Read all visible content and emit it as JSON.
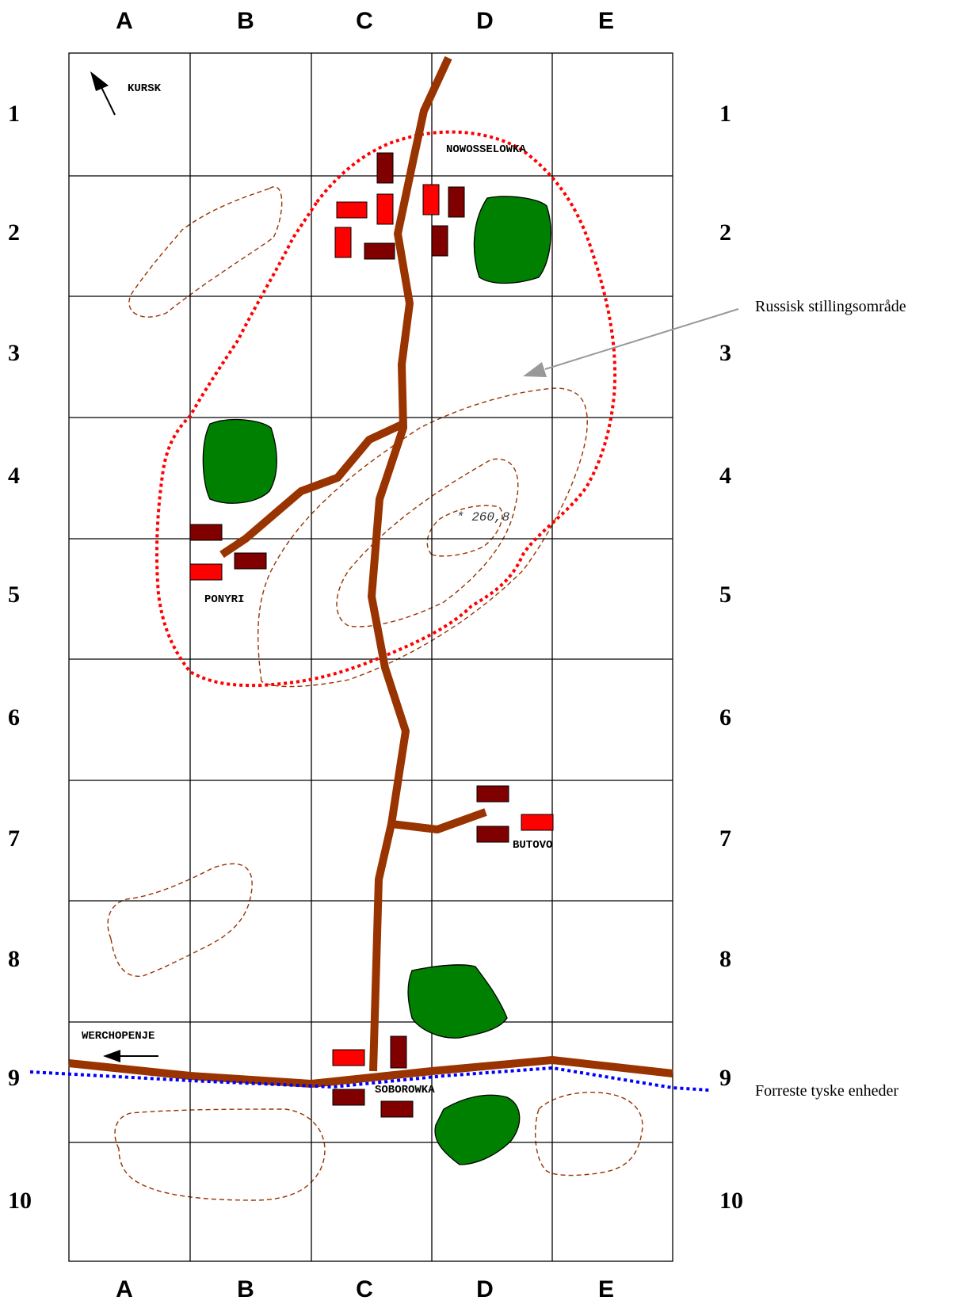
{
  "columns": [
    "A",
    "B",
    "C",
    "D",
    "E"
  ],
  "rows": [
    "1",
    "2",
    "3",
    "4",
    "5",
    "6",
    "7",
    "8",
    "9",
    "10"
  ],
  "places": {
    "kursk": "KURSK",
    "nowosselowka": "NOWOSSELOWKA",
    "ponyri": "PONYRI",
    "butovo": "BUTOVO",
    "werchopenje": "WERCHOPENJE",
    "soborowka": "SOBOROWKA"
  },
  "elevation": "* 260,8",
  "annotations": {
    "russian_area": "Russisk stillingsområde",
    "german_front": "Forreste tyske enheder"
  },
  "colors": {
    "road": "#993300",
    "forest": "#008000",
    "building_red": "#ff0000",
    "building_dark": "#800000",
    "russian_line": "#ff0000",
    "german_line": "#0000ff",
    "contour": "#993300",
    "grid": "#000000"
  }
}
